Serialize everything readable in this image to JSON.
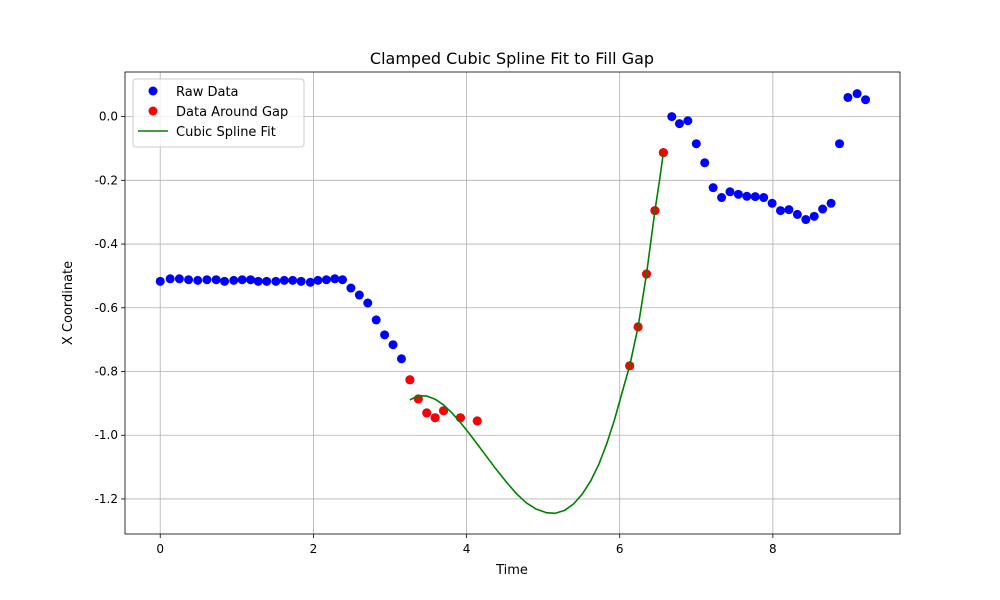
{
  "chart_data": {
    "type": "scatter",
    "title": "Clamped Cubic Spline Fit to Fill Gap",
    "xlabel": "Time",
    "ylabel": "X Coordinate",
    "xlim": [
      -0.46,
      9.66
    ],
    "ylim": [
      -1.31,
      0.14
    ],
    "xticks": [
      0,
      2,
      4,
      6,
      8
    ],
    "yticks": [
      0.0,
      -0.2,
      -0.4,
      -0.6,
      -0.8,
      -1.0,
      -1.2
    ],
    "grid": true,
    "legend_position": "top-left",
    "series": [
      {
        "name": "Raw Data",
        "kind": "markers",
        "color": "#0000ff",
        "points": [
          [
            0.0,
            -0.517
          ],
          [
            0.13,
            -0.509
          ],
          [
            0.25,
            -0.509
          ],
          [
            0.37,
            -0.512
          ],
          [
            0.49,
            -0.514
          ],
          [
            0.61,
            -0.512
          ],
          [
            0.73,
            -0.512
          ],
          [
            0.84,
            -0.517
          ],
          [
            0.96,
            -0.514
          ],
          [
            1.07,
            -0.512
          ],
          [
            1.18,
            -0.512
          ],
          [
            1.28,
            -0.517
          ],
          [
            1.39,
            -0.517
          ],
          [
            1.51,
            -0.517
          ],
          [
            1.62,
            -0.514
          ],
          [
            1.73,
            -0.514
          ],
          [
            1.84,
            -0.517
          ],
          [
            1.96,
            -0.52
          ],
          [
            2.06,
            -0.514
          ],
          [
            2.17,
            -0.512
          ],
          [
            2.28,
            -0.509
          ],
          [
            2.38,
            -0.512
          ],
          [
            2.49,
            -0.538
          ],
          [
            2.6,
            -0.56
          ],
          [
            2.71,
            -0.585
          ],
          [
            2.82,
            -0.638
          ],
          [
            2.93,
            -0.685
          ],
          [
            3.04,
            -0.716
          ],
          [
            3.15,
            -0.76
          ],
          [
            3.26,
            -0.826
          ],
          [
            3.37,
            -0.886
          ],
          [
            3.48,
            -0.93
          ],
          [
            3.59,
            -0.945
          ],
          [
            3.7,
            -0.923
          ],
          [
            3.92,
            -0.945
          ],
          [
            4.14,
            -0.955
          ],
          [
            6.13,
            -0.782
          ],
          [
            6.24,
            -0.66
          ],
          [
            6.35,
            -0.494
          ],
          [
            6.46,
            -0.295
          ],
          [
            6.57,
            -0.113
          ],
          [
            6.68,
            0.0
          ],
          [
            6.78,
            -0.022
          ],
          [
            6.89,
            -0.013
          ],
          [
            7.0,
            -0.085
          ],
          [
            7.11,
            -0.145
          ],
          [
            7.22,
            -0.223
          ],
          [
            7.33,
            -0.254
          ],
          [
            7.44,
            -0.236
          ],
          [
            7.55,
            -0.244
          ],
          [
            7.66,
            -0.25
          ],
          [
            7.77,
            -0.251
          ],
          [
            7.88,
            -0.254
          ],
          [
            7.99,
            -0.272
          ],
          [
            8.1,
            -0.295
          ],
          [
            8.21,
            -0.292
          ],
          [
            8.32,
            -0.307
          ],
          [
            8.43,
            -0.323
          ],
          [
            8.54,
            -0.313
          ],
          [
            8.65,
            -0.29
          ],
          [
            8.76,
            -0.272
          ],
          [
            8.87,
            -0.085
          ],
          [
            8.98,
            0.06
          ],
          [
            9.1,
            0.072
          ],
          [
            9.21,
            0.053
          ]
        ]
      },
      {
        "name": "Data Around Gap",
        "kind": "markers",
        "color": "#ff0000",
        "points": [
          [
            3.26,
            -0.826
          ],
          [
            3.37,
            -0.886
          ],
          [
            3.48,
            -0.93
          ],
          [
            3.59,
            -0.945
          ],
          [
            3.7,
            -0.923
          ],
          [
            3.92,
            -0.945
          ],
          [
            4.14,
            -0.955
          ],
          [
            6.13,
            -0.782
          ],
          [
            6.24,
            -0.66
          ],
          [
            6.35,
            -0.494
          ],
          [
            6.46,
            -0.295
          ],
          [
            6.57,
            -0.113
          ]
        ]
      },
      {
        "name": "Cubic Spline Fit",
        "kind": "line",
        "color": "#008000",
        "points": [
          [
            3.26,
            -0.889
          ],
          [
            3.37,
            -0.876
          ],
          [
            3.48,
            -0.877
          ],
          [
            3.59,
            -0.887
          ],
          [
            3.7,
            -0.905
          ],
          [
            3.81,
            -0.93
          ],
          [
            3.92,
            -0.96
          ],
          [
            4.03,
            -0.993
          ],
          [
            4.14,
            -1.028
          ],
          [
            4.25,
            -1.063
          ],
          [
            4.38,
            -1.105
          ],
          [
            4.52,
            -1.147
          ],
          [
            4.65,
            -1.183
          ],
          [
            4.78,
            -1.212
          ],
          [
            4.91,
            -1.232
          ],
          [
            5.04,
            -1.243
          ],
          [
            5.16,
            -1.245
          ],
          [
            5.28,
            -1.236
          ],
          [
            5.4,
            -1.215
          ],
          [
            5.51,
            -1.185
          ],
          [
            5.62,
            -1.144
          ],
          [
            5.73,
            -1.09
          ],
          [
            5.83,
            -1.027
          ],
          [
            5.93,
            -0.953
          ],
          [
            6.03,
            -0.867
          ],
          [
            6.13,
            -0.782
          ],
          [
            6.24,
            -0.66
          ],
          [
            6.35,
            -0.494
          ],
          [
            6.46,
            -0.295
          ],
          [
            6.52,
            -0.2
          ],
          [
            6.57,
            -0.113
          ]
        ]
      }
    ]
  }
}
